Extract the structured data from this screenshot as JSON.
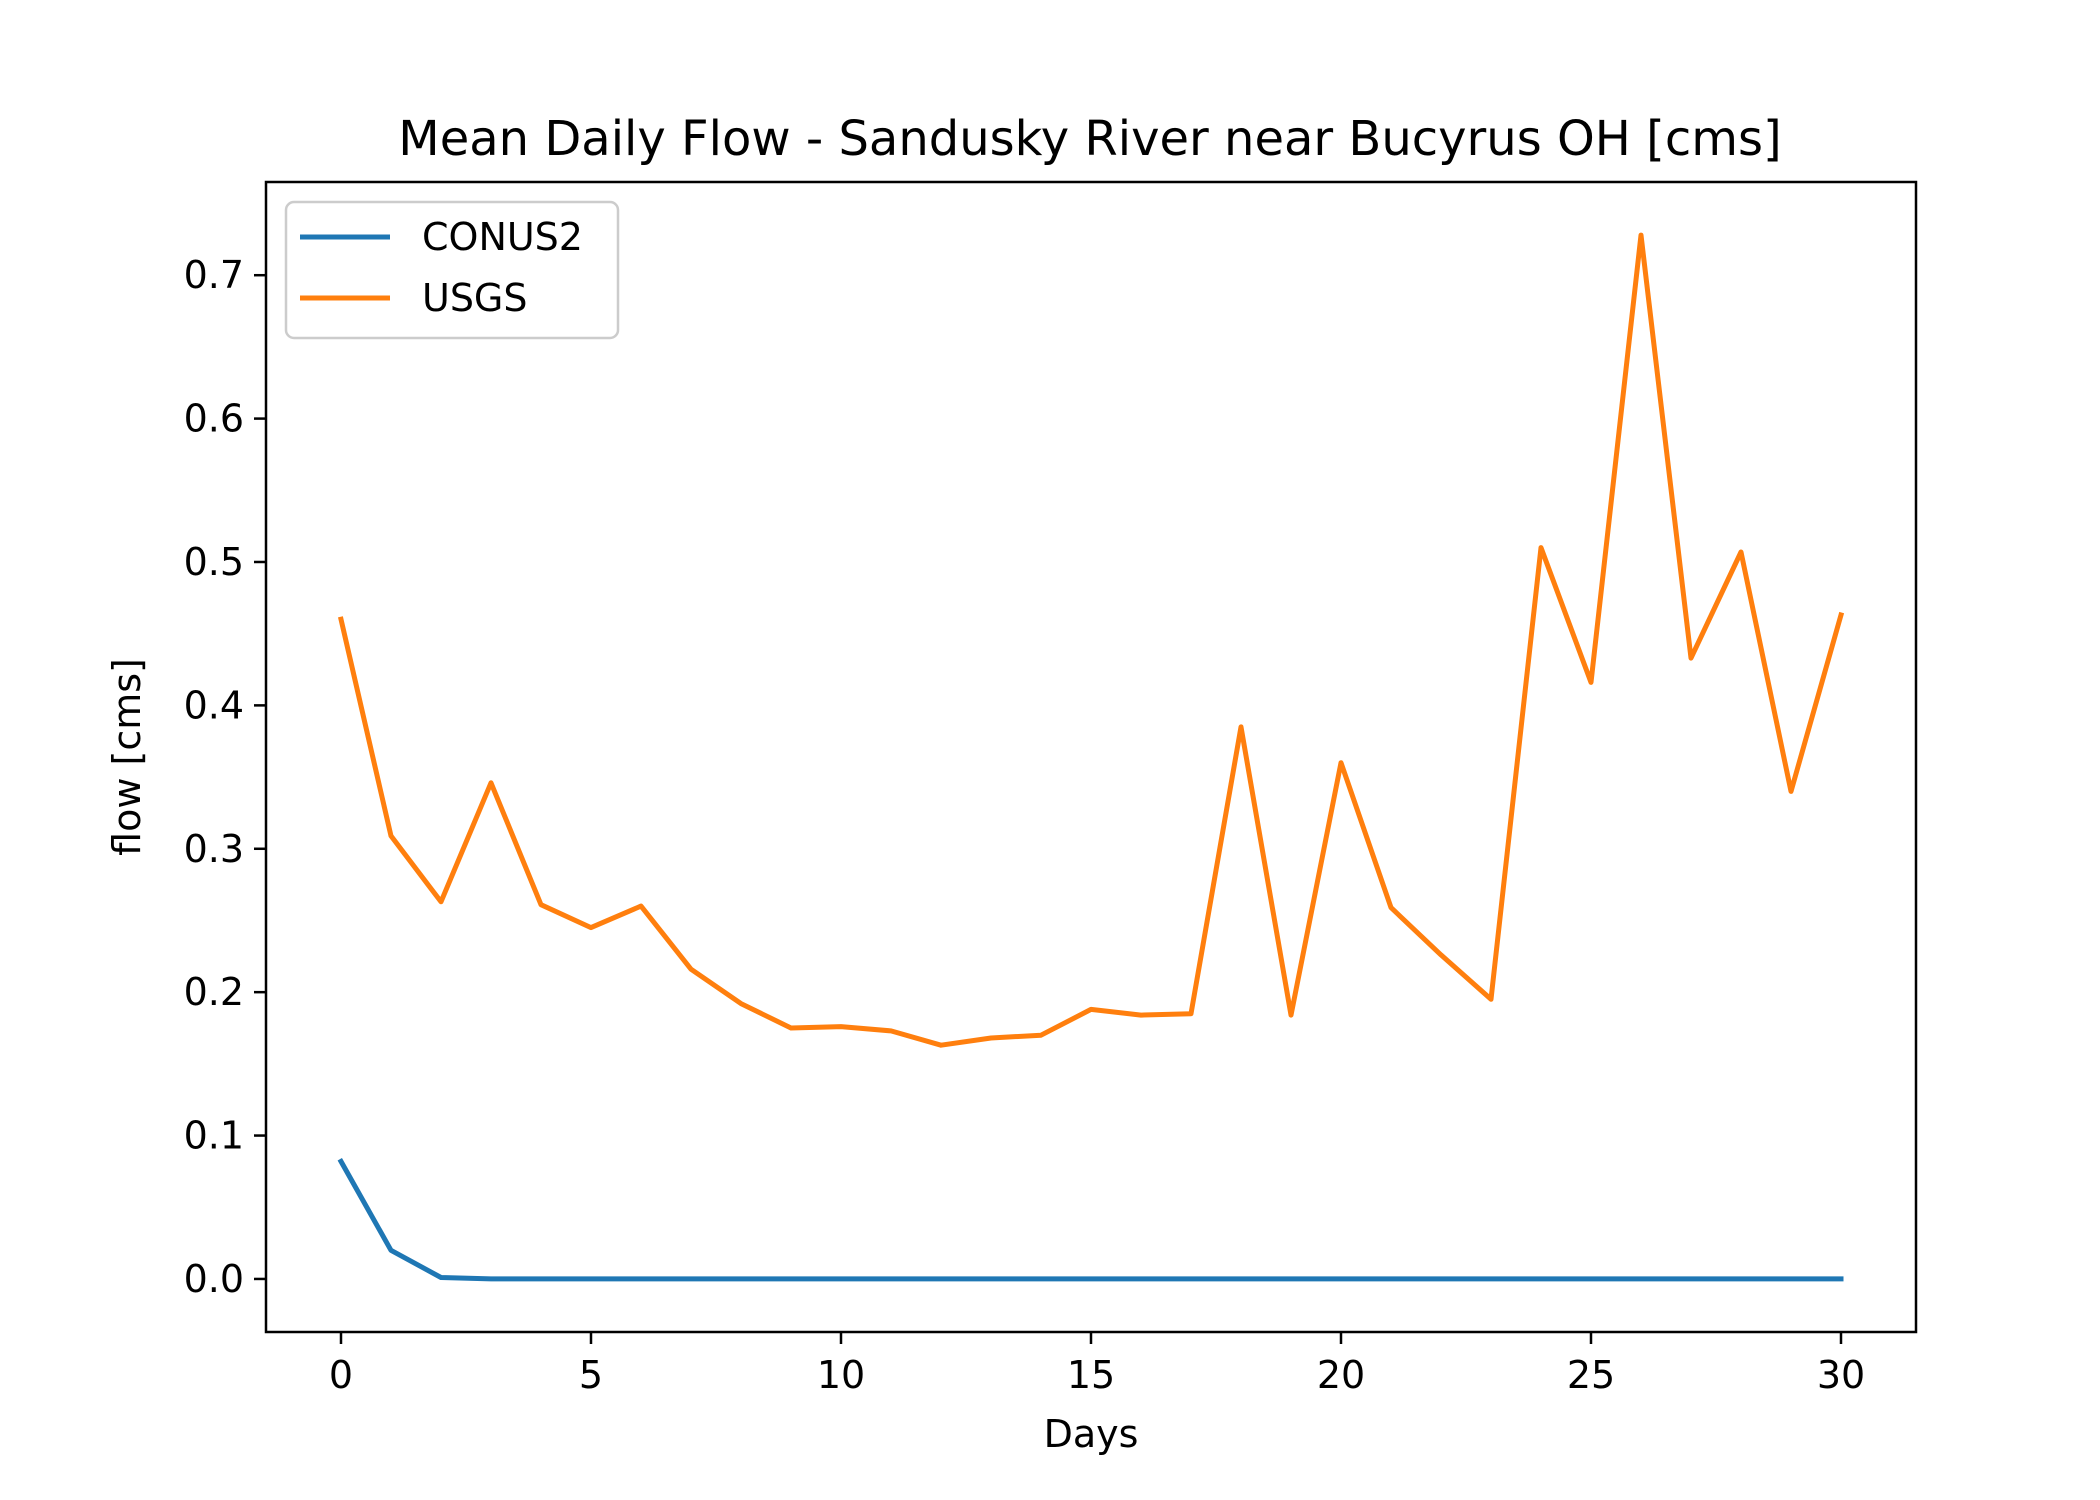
{
  "chart_data": {
    "type": "line",
    "title": "Mean Daily Flow - Sandusky River near Bucyrus OH [cms]",
    "xlabel": "Days",
    "ylabel": "flow [cms]",
    "xlim": [
      -1.5,
      31.5
    ],
    "ylim": [
      -0.037,
      0.765
    ],
    "xticks": [
      0,
      5,
      10,
      15,
      20,
      25,
      30
    ],
    "yticks": [
      0.0,
      0.1,
      0.2,
      0.3,
      0.4,
      0.5,
      0.6,
      0.7
    ],
    "xtick_labels": [
      "0",
      "5",
      "10",
      "15",
      "20",
      "25",
      "30"
    ],
    "ytick_labels": [
      "0.0",
      "0.1",
      "0.2",
      "0.3",
      "0.4",
      "0.5",
      "0.6",
      "0.7"
    ],
    "grid": false,
    "legend_position": "top-left",
    "x": [
      0,
      1,
      2,
      3,
      4,
      5,
      6,
      7,
      8,
      9,
      10,
      11,
      12,
      13,
      14,
      15,
      16,
      17,
      18,
      19,
      20,
      21,
      22,
      23,
      24,
      25,
      26,
      27,
      28,
      29,
      30
    ],
    "series": [
      {
        "name": "CONUS2",
        "color": "#1f77b4",
        "values": [
          0.082,
          0.02,
          0.001,
          0.0,
          0.0,
          0.0,
          0.0,
          0.0,
          0.0,
          0.0,
          0.0,
          0.0,
          0.0,
          0.0,
          0.0,
          0.0,
          0.0,
          0.0,
          0.0,
          0.0,
          0.0,
          0.0,
          0.0,
          0.0,
          0.0,
          0.0,
          0.0,
          0.0,
          0.0,
          0.0,
          0.0
        ]
      },
      {
        "name": "USGS",
        "color": "#ff7f0e",
        "values": [
          0.46,
          0.309,
          0.263,
          0.346,
          0.261,
          0.245,
          0.26,
          0.216,
          0.192,
          0.175,
          0.176,
          0.173,
          0.163,
          0.168,
          0.17,
          0.188,
          0.184,
          0.185,
          0.385,
          0.184,
          0.36,
          0.259,
          0.226,
          0.195,
          0.51,
          0.416,
          0.728,
          0.433,
          0.507,
          0.34,
          0.463
        ]
      }
    ]
  }
}
